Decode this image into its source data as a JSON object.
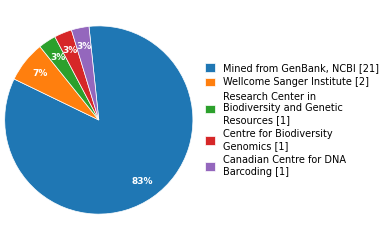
{
  "chart_data": {
    "type": "pie",
    "categories": [
      "Mined from GenBank, NCBI [21]",
      "Wellcome Sanger Institute [2]",
      "Research Center in\nBiodiversity and Genetic\nResources [1]",
      "Centre for Biodiversity\nGenomics [1]",
      "Canadian Centre for DNA\nBarcoding [1]"
    ],
    "values": [
      83,
      7,
      3,
      3,
      3
    ],
    "value_labels": [
      "83%",
      "7%",
      "3%",
      "3%",
      "3%"
    ],
    "data_labels": true,
    "legend": "center left"
  }
}
